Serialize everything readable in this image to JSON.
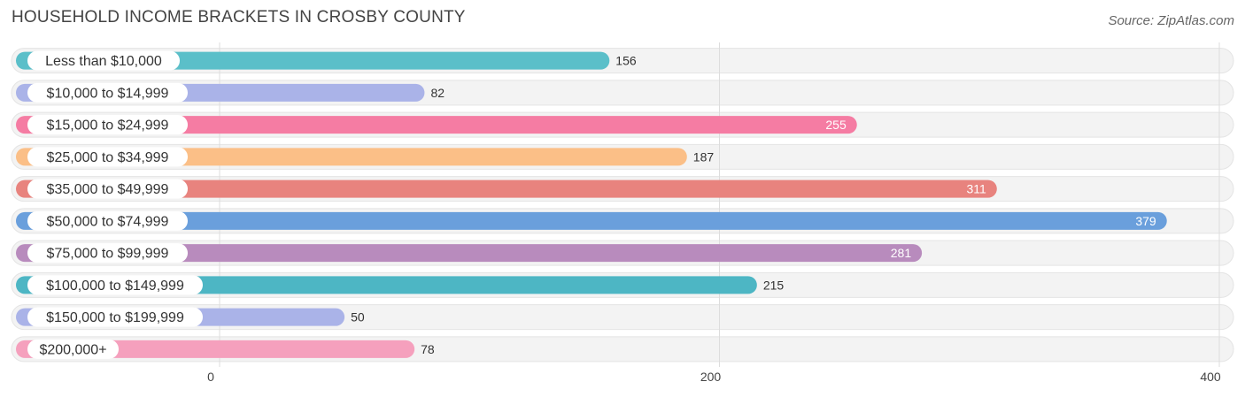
{
  "header": {
    "title": "HOUSEHOLD INCOME BRACKETS IN CROSBY COUNTY",
    "source": "Source: ZipAtlas.com"
  },
  "chart_data": {
    "type": "bar",
    "orientation": "horizontal",
    "title": "HOUSEHOLD INCOME BRACKETS IN CROSBY COUNTY",
    "categories": [
      "Less than $10,000",
      "$10,000 to $14,999",
      "$15,000 to $24,999",
      "$25,000 to $34,999",
      "$35,000 to $49,999",
      "$50,000 to $74,999",
      "$75,000 to $99,999",
      "$100,000 to $149,999",
      "$150,000 to $199,999",
      "$200,000+"
    ],
    "values": [
      156,
      82,
      255,
      187,
      311,
      379,
      281,
      215,
      50,
      78
    ],
    "value_labels": [
      "156",
      "82",
      "255",
      "187",
      "311",
      "379",
      "281",
      "215",
      "50",
      "78"
    ],
    "colors": [
      "#5bbfc9",
      "#aab3e8",
      "#f57ca3",
      "#fbbf87",
      "#e8837e",
      "#6a9fdc",
      "#b88bbd",
      "#4db6c4",
      "#aab3e8",
      "#f5a0bd"
    ],
    "xlim": [
      0,
      400
    ],
    "xticks": [
      0,
      200,
      400
    ],
    "xtick_labels": [
      "0",
      "200",
      "400"
    ],
    "grid": true,
    "legend": "none"
  }
}
